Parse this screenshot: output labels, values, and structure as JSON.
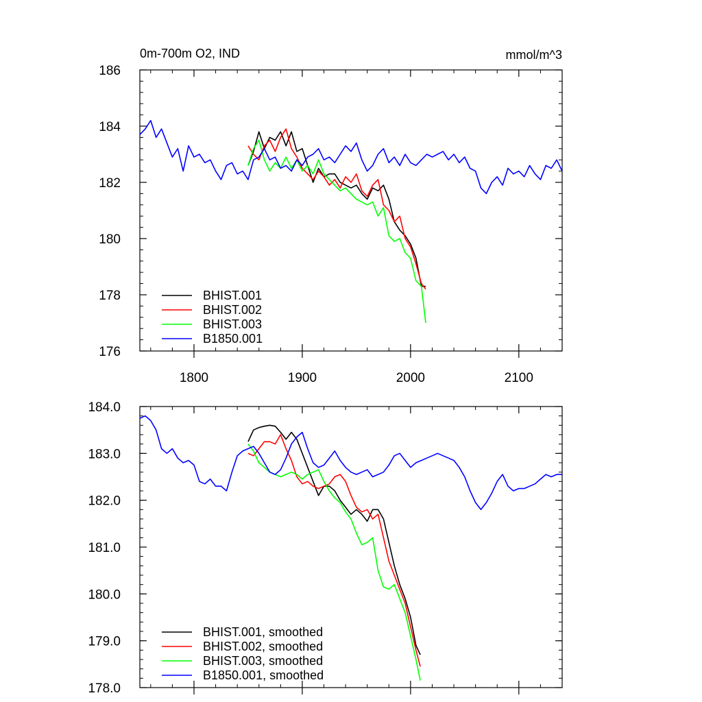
{
  "chart_data": [
    {
      "type": "line",
      "title": "0m-700m O2, IND",
      "units": "mmol/m^3",
      "ylim": [
        176,
        186
      ],
      "yticks": [
        176,
        178,
        180,
        182,
        184,
        186
      ],
      "ytick_labels": [
        "176",
        "178",
        "180",
        "182",
        "184",
        "186"
      ],
      "xlim": [
        1750,
        2140
      ],
      "xticks": [
        1800,
        1900,
        2000,
        2100
      ],
      "xtick_labels": [
        "1800",
        "1900",
        "2000",
        "2100"
      ],
      "legend_position": "bottom-left",
      "series": [
        {
          "name": "BHIST.001",
          "color": "#000000",
          "x": [
            1850,
            1855,
            1860,
            1865,
            1870,
            1875,
            1880,
            1885,
            1890,
            1895,
            1900,
            1905,
            1910,
            1915,
            1920,
            1925,
            1930,
            1935,
            1940,
            1945,
            1950,
            1955,
            1960,
            1965,
            1970,
            1975,
            1980,
            1985,
            1990,
            1995,
            2000,
            2005,
            2010,
            2014
          ],
          "y": [
            182.6,
            183.1,
            183.8,
            183.2,
            183.6,
            183.5,
            183.8,
            183.3,
            183.8,
            183.1,
            183.2,
            182.6,
            182.0,
            182.5,
            182.2,
            182.3,
            182.3,
            182.0,
            181.9,
            181.8,
            181.9,
            181.6,
            181.4,
            181.8,
            181.7,
            181.9,
            181.4,
            180.6,
            180.3,
            180.1,
            179.8,
            179.3,
            178.3,
            178.3
          ]
        },
        {
          "name": "BHIST.002",
          "color": "#ff0000",
          "x": [
            1850,
            1855,
            1860,
            1865,
            1870,
            1875,
            1880,
            1885,
            1890,
            1895,
            1900,
            1905,
            1910,
            1915,
            1920,
            1925,
            1930,
            1935,
            1940,
            1945,
            1950,
            1955,
            1960,
            1965,
            1970,
            1975,
            1980,
            1985,
            1990,
            1995,
            2000,
            2005,
            2010,
            2014
          ],
          "y": [
            183.3,
            183.0,
            182.8,
            183.3,
            183.5,
            183.1,
            183.6,
            183.9,
            183.2,
            182.9,
            182.5,
            182.3,
            182.1,
            182.4,
            182.2,
            181.9,
            182.1,
            181.8,
            182.2,
            182.0,
            182.3,
            181.7,
            181.5,
            181.9,
            182.1,
            181.2,
            181.0,
            180.6,
            180.8,
            180.0,
            179.7,
            179.1,
            178.4,
            178.2
          ]
        },
        {
          "name": "BHIST.003",
          "color": "#00ff00",
          "x": [
            1850,
            1855,
            1860,
            1865,
            1870,
            1875,
            1880,
            1885,
            1890,
            1895,
            1900,
            1905,
            1910,
            1915,
            1920,
            1925,
            1930,
            1935,
            1940,
            1945,
            1950,
            1955,
            1960,
            1965,
            1970,
            1975,
            1980,
            1985,
            1990,
            1995,
            2000,
            2005,
            2010,
            2014
          ],
          "y": [
            182.6,
            183.2,
            183.5,
            182.8,
            182.4,
            182.7,
            182.5,
            182.9,
            182.5,
            182.8,
            182.4,
            182.6,
            182.3,
            182.8,
            182.3,
            182.1,
            181.9,
            181.7,
            181.8,
            181.6,
            181.4,
            181.3,
            181.2,
            181.3,
            180.8,
            181.1,
            180.1,
            179.9,
            180.0,
            179.5,
            179.3,
            178.5,
            178.3,
            177.0
          ]
        },
        {
          "name": "B1850.001",
          "color": "#0000ff",
          "x": [
            1750,
            1755,
            1760,
            1765,
            1770,
            1775,
            1780,
            1785,
            1790,
            1795,
            1800,
            1805,
            1810,
            1815,
            1820,
            1825,
            1830,
            1835,
            1840,
            1845,
            1850,
            1855,
            1860,
            1865,
            1870,
            1875,
            1880,
            1885,
            1890,
            1895,
            1900,
            1905,
            1910,
            1915,
            1920,
            1925,
            1930,
            1935,
            1940,
            1945,
            1950,
            1955,
            1960,
            1965,
            1970,
            1975,
            1980,
            1985,
            1990,
            1995,
            2000,
            2005,
            2010,
            2015,
            2020,
            2025,
            2030,
            2035,
            2040,
            2045,
            2050,
            2055,
            2060,
            2065,
            2070,
            2075,
            2080,
            2085,
            2090,
            2095,
            2100,
            2105,
            2110,
            2115,
            2120,
            2125,
            2130,
            2135,
            2140
          ],
          "y": [
            183.7,
            183.9,
            184.2,
            183.6,
            183.9,
            183.4,
            182.9,
            183.2,
            182.4,
            183.3,
            182.9,
            183.0,
            182.7,
            182.8,
            182.4,
            182.1,
            182.6,
            182.7,
            182.3,
            182.4,
            182.1,
            182.8,
            182.9,
            183.2,
            182.8,
            182.9,
            182.5,
            182.6,
            182.4,
            182.8,
            182.6,
            182.9,
            183.0,
            183.2,
            182.8,
            182.9,
            182.7,
            183.0,
            183.3,
            183.1,
            183.4,
            182.8,
            182.4,
            182.6,
            183.0,
            183.2,
            182.7,
            182.9,
            182.6,
            183.0,
            182.7,
            182.6,
            182.8,
            183.0,
            182.9,
            183.0,
            183.1,
            182.8,
            183.0,
            182.7,
            182.9,
            182.5,
            182.4,
            181.8,
            181.6,
            182.0,
            182.2,
            181.9,
            182.5,
            182.3,
            182.4,
            182.2,
            182.6,
            182.3,
            182.1,
            182.6,
            182.5,
            182.8,
            182.4
          ]
        }
      ]
    },
    {
      "type": "line",
      "ylim": [
        178.0,
        184.0
      ],
      "yticks": [
        178.0,
        179.0,
        180.0,
        181.0,
        182.0,
        183.0,
        184.0
      ],
      "ytick_labels": [
        "178.0",
        "179.0",
        "180.0",
        "181.0",
        "182.0",
        "183.0",
        "184.0"
      ],
      "xlim": [
        1750,
        2140
      ],
      "xticks": [
        1800,
        1900,
        2000,
        2100
      ],
      "legend_position": "bottom-left",
      "series": [
        {
          "name": "BHIST.001, smoothed",
          "color": "#000000",
          "x": [
            1850,
            1855,
            1860,
            1865,
            1870,
            1875,
            1880,
            1885,
            1890,
            1895,
            1900,
            1905,
            1910,
            1915,
            1920,
            1925,
            1930,
            1935,
            1940,
            1945,
            1950,
            1955,
            1960,
            1965,
            1970,
            1975,
            1980,
            1985,
            1990,
            1995,
            2000,
            2005,
            2009
          ],
          "y": [
            183.25,
            183.5,
            183.55,
            183.58,
            183.6,
            183.58,
            183.45,
            183.3,
            183.45,
            183.3,
            183.0,
            182.7,
            182.4,
            182.1,
            182.3,
            182.3,
            182.2,
            182.0,
            181.85,
            181.7,
            181.8,
            181.7,
            181.55,
            181.8,
            181.8,
            181.6,
            181.1,
            180.6,
            180.2,
            179.9,
            179.5,
            178.9,
            178.7
          ]
        },
        {
          "name": "BHIST.002, smoothed",
          "color": "#ff0000",
          "x": [
            1850,
            1855,
            1860,
            1865,
            1870,
            1875,
            1880,
            1885,
            1890,
            1895,
            1900,
            1905,
            1910,
            1915,
            1920,
            1925,
            1930,
            1935,
            1940,
            1945,
            1950,
            1955,
            1960,
            1965,
            1970,
            1975,
            1980,
            1985,
            1990,
            1995,
            2000,
            2005,
            2009
          ],
          "y": [
            183.0,
            182.95,
            183.1,
            183.25,
            183.25,
            183.2,
            183.4,
            183.1,
            182.85,
            182.5,
            182.35,
            182.4,
            182.3,
            182.25,
            182.3,
            182.35,
            182.5,
            182.55,
            182.4,
            182.1,
            181.85,
            181.75,
            181.8,
            181.6,
            181.7,
            181.2,
            180.7,
            180.4,
            180.1,
            179.8,
            179.3,
            178.8,
            178.45
          ]
        },
        {
          "name": "BHIST.003, smoothed",
          "color": "#00ff00",
          "x": [
            1850,
            1855,
            1860,
            1865,
            1870,
            1875,
            1880,
            1885,
            1890,
            1895,
            1900,
            1905,
            1910,
            1915,
            1920,
            1925,
            1930,
            1935,
            1940,
            1945,
            1950,
            1955,
            1960,
            1965,
            1970,
            1975,
            1980,
            1985,
            1990,
            1995,
            2000,
            2005,
            2009
          ],
          "y": [
            183.2,
            183.05,
            182.8,
            182.7,
            182.6,
            182.55,
            182.5,
            182.55,
            182.6,
            182.55,
            182.45,
            182.55,
            182.6,
            182.65,
            182.4,
            182.2,
            182.05,
            181.95,
            181.75,
            181.6,
            181.3,
            181.05,
            181.1,
            181.2,
            180.5,
            180.15,
            180.1,
            180.2,
            179.9,
            179.6,
            179.1,
            178.6,
            178.15
          ]
        },
        {
          "name": "B1850.001, smoothed",
          "color": "#0000ff",
          "x": [
            1750,
            1755,
            1760,
            1765,
            1770,
            1775,
            1780,
            1785,
            1790,
            1795,
            1800,
            1805,
            1810,
            1815,
            1820,
            1825,
            1830,
            1835,
            1840,
            1845,
            1850,
            1855,
            1860,
            1865,
            1870,
            1875,
            1880,
            1885,
            1890,
            1895,
            1900,
            1905,
            1910,
            1915,
            1920,
            1925,
            1930,
            1935,
            1940,
            1945,
            1950,
            1955,
            1960,
            1965,
            1970,
            1975,
            1980,
            1985,
            1990,
            1995,
            2000,
            2005,
            2010,
            2015,
            2020,
            2025,
            2030,
            2035,
            2040,
            2045,
            2050,
            2055,
            2060,
            2065,
            2070,
            2075,
            2080,
            2085,
            2090,
            2095,
            2100,
            2105,
            2110,
            2115,
            2120,
            2125,
            2130,
            2135,
            2140
          ],
          "y": [
            183.75,
            183.8,
            183.7,
            183.5,
            183.1,
            183.0,
            183.1,
            182.9,
            182.8,
            182.85,
            182.75,
            182.4,
            182.35,
            182.45,
            182.3,
            182.3,
            182.2,
            182.6,
            182.95,
            183.05,
            183.1,
            183.15,
            183.0,
            182.8,
            182.6,
            182.55,
            182.65,
            182.9,
            183.2,
            183.35,
            183.45,
            183.1,
            182.8,
            182.7,
            182.75,
            182.9,
            183.05,
            182.85,
            182.7,
            182.6,
            182.55,
            182.6,
            182.65,
            182.5,
            182.55,
            182.6,
            182.75,
            182.95,
            183.0,
            182.85,
            182.7,
            182.8,
            182.85,
            182.9,
            182.95,
            183.0,
            182.95,
            182.9,
            182.85,
            182.7,
            182.5,
            182.2,
            181.95,
            181.8,
            181.95,
            182.15,
            182.4,
            182.55,
            182.3,
            182.2,
            182.25,
            182.25,
            182.3,
            182.35,
            182.45,
            182.55,
            182.5,
            182.55,
            182.55
          ]
        }
      ]
    }
  ]
}
